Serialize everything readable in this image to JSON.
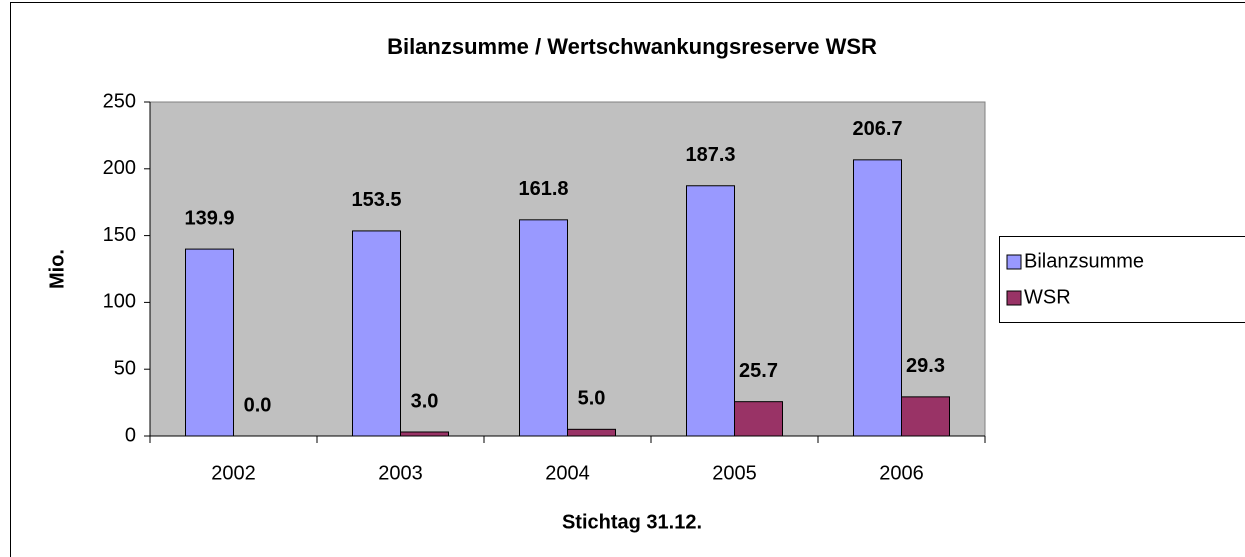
{
  "chart_data": {
    "type": "bar",
    "title": "Bilanzsumme / Wertschwankungsreserve WSR",
    "x_label": "Stichtag 31.12.",
    "y_label": "Mio.",
    "categories": [
      "2002",
      "2003",
      "2004",
      "2005",
      "2006"
    ],
    "series": [
      {
        "name": "Bilanzsumme",
        "color": "#9999ff",
        "values": [
          139.9,
          153.5,
          161.8,
          187.3,
          206.7
        ],
        "value_labels": [
          "139.9",
          "153.5",
          "161.8",
          "187.3",
          "206.7"
        ]
      },
      {
        "name": "WSR",
        "color": "#993366",
        "values": [
          0,
          3,
          5,
          25.7,
          29.3
        ],
        "value_labels": [
          "0.0",
          "3.0",
          "5.0",
          "25.7",
          "29.3"
        ]
      }
    ],
    "ylim": [
      0,
      250
    ],
    "yticks": [
      0,
      50,
      100,
      150,
      200,
      250
    ],
    "grid": false,
    "legend": "right",
    "plot_background": "#c0c0c0"
  }
}
